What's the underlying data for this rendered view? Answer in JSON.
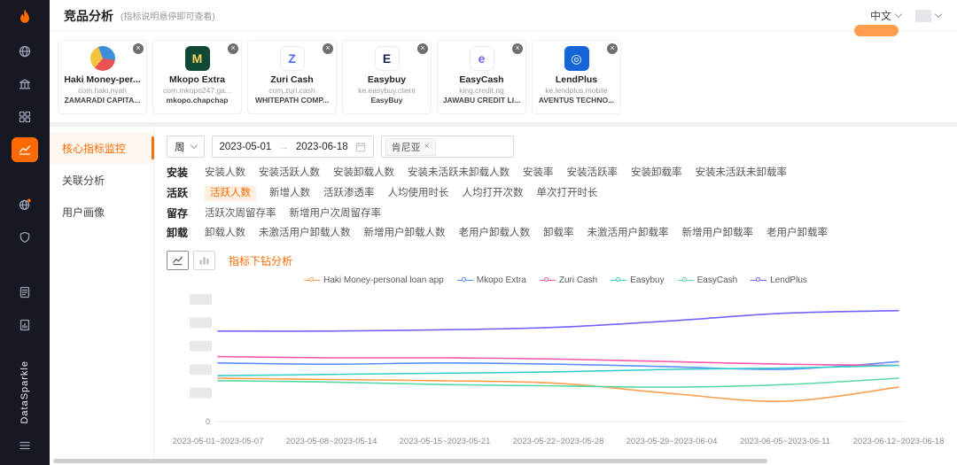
{
  "brand": {
    "name": "DataSparkle",
    "accent_color": "#FF6A00"
  },
  "header": {
    "title": "竞品分析",
    "hint": "(指标说明悬停即可查看)",
    "language": "中文"
  },
  "icons": {
    "close": "×",
    "tag_close": "×"
  },
  "sidebar": {
    "icon_names": [
      "flame-logo-icon",
      "globe-icon",
      "bank-icon",
      "apps-grid-icon",
      "line-chart-icon",
      "world-notify-icon",
      "shield-icon",
      "report-icon",
      "chart-doc-icon",
      "hamburger-icon"
    ]
  },
  "app_cards": [
    {
      "name": "Haki Money-per...",
      "package": "com.haki.nyah",
      "company": "ZAMARADI CAPITA...",
      "icon_name": "haki-app-icon",
      "icon_bg": "conic-gradient(from 220deg, #F5C242 0 33%, #3F8FD8 33% 66%, #E85454 66% 100%)",
      "icon_round": true,
      "icon_glyph": "",
      "icon_glyph_color": "#ffffff"
    },
    {
      "name": "Mkopo Extra",
      "package": "com.mkopo247.ga...",
      "company": "mkopo.chapchap",
      "icon_name": "mkopo-app-icon",
      "icon_bg": "#104A34",
      "icon_glyph": "M",
      "icon_glyph_color": "#F4D35E"
    },
    {
      "name": "Zuri Cash",
      "package": "com.zuri.cash",
      "company": "WHITEPATH COMP...",
      "icon_name": "zuri-app-icon",
      "icon_bg": "#ffffff",
      "icon_border": true,
      "icon_glyph": "Z",
      "icon_glyph_color": "#4C6FFF"
    },
    {
      "name": "Easybuy",
      "package": "ke.easybuy.client",
      "company": "EasyBuy",
      "icon_name": "easybuy-app-icon",
      "icon_bg": "#ffffff",
      "icon_border": true,
      "icon_glyph": "E",
      "icon_glyph_color": "#1B2A4A"
    },
    {
      "name": "EasyCash",
      "package": "king.credit.ng",
      "company": "JAWABU CREDIT LI...",
      "icon_name": "easycash-app-icon",
      "icon_bg": "#ffffff",
      "icon_border": true,
      "icon_glyph": "e",
      "icon_glyph_color": "#7B5BE6"
    },
    {
      "name": "LendPlus",
      "package": "ke.lendplus.mobile",
      "company": "AVENTUS TECHNO...",
      "icon_name": "lendplus-app-icon",
      "icon_bg": "#1565D8",
      "icon_glyph": "◎",
      "icon_glyph_color": "#ffffff"
    }
  ],
  "submenu": [
    {
      "key": "core-metrics",
      "label": "核心指标监控",
      "active": true
    },
    {
      "key": "association-analysis",
      "label": "关联分析",
      "active": false
    },
    {
      "key": "user-persona",
      "label": "用户画像",
      "active": false
    }
  ],
  "filters": {
    "period": "周",
    "date_start": "2023-05-01",
    "date_separator": "→",
    "date_end": "2023-06-18",
    "country": "肯尼亚"
  },
  "metric_groups": [
    {
      "group": "安装",
      "items": [
        "安装人数",
        "安装活跃人数",
        "安装卸载人数",
        "安装未活跃未卸载人数",
        "安装率",
        "安装活跃率",
        "安装卸载率",
        "安装未活跃未卸载率"
      ],
      "selected": ""
    },
    {
      "group": "活跃",
      "items": [
        "活跃人数",
        "新增人数",
        "活跃渗透率",
        "人均使用时长",
        "人均打开次数",
        "单次打开时长"
      ],
      "selected": "活跃人数"
    },
    {
      "group": "留存",
      "items": [
        "活跃次周留存率",
        "新增用户次周留存率"
      ],
      "selected": ""
    },
    {
      "group": "卸载",
      "items": [
        "卸载人数",
        "未激活用户卸载人数",
        "新增用户卸载人数",
        "老用户卸载人数",
        "卸载率",
        "未激活用户卸载率",
        "新增用户卸载率",
        "老用户卸载率"
      ],
      "selected": ""
    }
  ],
  "toolbar": {
    "drill_label": "指标下钻分析"
  },
  "chart_data": {
    "type": "line",
    "x": [
      "2023-05-01~2023-05-07",
      "2023-05-08~2023-05-14",
      "2023-05-15~2023-05-21",
      "2023-05-22~2023-05-28",
      "2023-05-29~2023-06-04",
      "2023-06-05~2023-06-11",
      "2023-06-12~2023-06-18"
    ],
    "series": [
      {
        "name": "Haki Money-personal loan app",
        "color": "#FF9D4D",
        "values": [
          34,
          33,
          32,
          30,
          22,
          16,
          27
        ]
      },
      {
        "name": "Mkopo Extra",
        "color": "#5B8FF9",
        "values": [
          46,
          45,
          46,
          45,
          43,
          41,
          47
        ]
      },
      {
        "name": "Zuri Cash",
        "color": "#F759AB",
        "values": [
          51,
          50,
          50,
          49,
          47,
          45,
          44
        ]
      },
      {
        "name": "Easybuy",
        "color": "#36CFC9",
        "values": [
          36,
          37,
          38,
          39,
          41,
          42,
          44
        ]
      },
      {
        "name": "EasyCash",
        "color": "#5AD8A6",
        "values": [
          32,
          31,
          29,
          28,
          27,
          29,
          34
        ]
      },
      {
        "name": "LendPlus",
        "color": "#7262FD",
        "values": [
          71,
          71,
          72,
          74,
          79,
          85,
          87
        ]
      }
    ],
    "ylim": [
      0,
      100
    ],
    "y_zero_label": "0",
    "y_axis_labels_redacted": true,
    "legend_position": "top",
    "grid": false
  }
}
